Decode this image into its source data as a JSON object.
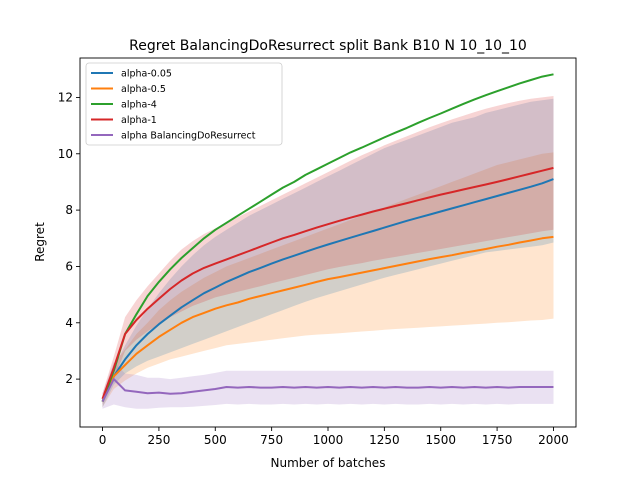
{
  "chart_data": {
    "type": "line",
    "title": "Regret BalancingDoResurrect split Bank B10 N 10_10_10",
    "xlabel": "Number of batches",
    "ylabel": "Regret",
    "xlim": [
      -100,
      2100
    ],
    "ylim": [
      0.3,
      13.4
    ],
    "xticks": [
      0,
      250,
      500,
      750,
      1000,
      1250,
      1500,
      1750,
      2000
    ],
    "yticks": [
      2,
      4,
      6,
      8,
      10,
      12
    ],
    "x": [
      0,
      50,
      100,
      150,
      200,
      250,
      300,
      350,
      400,
      450,
      500,
      550,
      600,
      650,
      700,
      750,
      800,
      850,
      900,
      950,
      1000,
      1050,
      1100,
      1150,
      1200,
      1250,
      1300,
      1350,
      1400,
      1450,
      1500,
      1550,
      1600,
      1650,
      1700,
      1750,
      1800,
      1850,
      1900,
      1950,
      2000
    ],
    "legend_position": "upper left",
    "series": [
      {
        "name": "alpha-0.05",
        "color": "#1f77b4",
        "values": [
          1.2,
          2.1,
          2.7,
          3.2,
          3.6,
          3.95,
          4.25,
          4.55,
          4.8,
          5.05,
          5.25,
          5.45,
          5.62,
          5.8,
          5.95,
          6.1,
          6.25,
          6.38,
          6.52,
          6.65,
          6.78,
          6.9,
          7.02,
          7.14,
          7.26,
          7.38,
          7.5,
          7.62,
          7.73,
          7.84,
          7.95,
          8.06,
          8.17,
          8.28,
          8.39,
          8.5,
          8.61,
          8.72,
          8.83,
          8.95,
          9.1
        ],
        "lower": [
          1.0,
          1.8,
          2.2,
          2.45,
          2.65,
          2.8,
          2.95,
          3.1,
          3.25,
          3.4,
          3.55,
          3.7,
          3.85,
          4.0,
          4.15,
          4.3,
          4.45,
          4.6,
          4.75,
          4.88,
          5.0,
          5.12,
          5.24,
          5.36,
          5.48,
          5.6,
          5.7,
          5.8,
          5.9,
          6.0,
          6.1,
          6.2,
          6.3,
          6.4,
          6.5,
          6.55,
          6.6,
          6.65,
          6.7,
          6.75,
          6.85
        ],
        "upper": [
          1.4,
          2.4,
          3.2,
          3.9,
          4.5,
          5.05,
          5.55,
          6.0,
          6.4,
          6.75,
          7.05,
          7.3,
          7.55,
          7.8,
          8.0,
          8.2,
          8.4,
          8.6,
          8.8,
          9.0,
          9.2,
          9.4,
          9.6,
          9.8,
          10.0,
          10.2,
          10.35,
          10.5,
          10.65,
          10.8,
          10.95,
          11.1,
          11.2,
          11.3,
          11.45,
          11.55,
          11.65,
          11.75,
          11.85,
          11.9,
          11.95
        ]
      },
      {
        "name": "alpha-0.5",
        "color": "#ff7f0e",
        "values": [
          1.2,
          2.1,
          2.5,
          2.9,
          3.2,
          3.5,
          3.75,
          4.0,
          4.2,
          4.35,
          4.5,
          4.62,
          4.72,
          4.85,
          4.95,
          5.05,
          5.15,
          5.25,
          5.35,
          5.45,
          5.55,
          5.62,
          5.7,
          5.78,
          5.86,
          5.94,
          6.02,
          6.1,
          6.18,
          6.26,
          6.33,
          6.4,
          6.48,
          6.55,
          6.62,
          6.7,
          6.77,
          6.85,
          6.92,
          7.0,
          7.05
        ],
        "lower": [
          1.0,
          1.65,
          1.95,
          2.2,
          2.4,
          2.55,
          2.7,
          2.8,
          2.9,
          3.0,
          3.1,
          3.2,
          3.25,
          3.3,
          3.35,
          3.4,
          3.45,
          3.5,
          3.55,
          3.58,
          3.6,
          3.63,
          3.66,
          3.69,
          3.72,
          3.75,
          3.78,
          3.8,
          3.82,
          3.85,
          3.87,
          3.9,
          3.92,
          3.95,
          3.97,
          4.0,
          4.02,
          4.05,
          4.08,
          4.1,
          4.15
        ],
        "upper": [
          1.4,
          2.55,
          3.05,
          3.6,
          4.0,
          4.45,
          4.8,
          5.1,
          5.35,
          5.6,
          5.8,
          6.0,
          6.15,
          6.3,
          6.45,
          6.6,
          6.75,
          6.9,
          7.05,
          7.2,
          7.35,
          7.5,
          7.65,
          7.8,
          7.95,
          8.1,
          8.25,
          8.4,
          8.55,
          8.7,
          8.85,
          9.0,
          9.15,
          9.3,
          9.45,
          9.6,
          9.7,
          9.8,
          9.9,
          10.0,
          10.05
        ]
      },
      {
        "name": "alpha-4",
        "color": "#2ca02c",
        "values": [
          1.2,
          2.3,
          3.6,
          4.3,
          4.95,
          5.45,
          5.9,
          6.3,
          6.65,
          7.0,
          7.3,
          7.55,
          7.8,
          8.05,
          8.3,
          8.55,
          8.8,
          9.0,
          9.25,
          9.45,
          9.65,
          9.85,
          10.05,
          10.22,
          10.4,
          10.58,
          10.75,
          10.92,
          11.1,
          11.27,
          11.43,
          11.6,
          11.77,
          11.93,
          12.08,
          12.22,
          12.36,
          12.5,
          12.62,
          12.74,
          12.82
        ],
        "lower": [
          1.2,
          2.3,
          3.6,
          4.3,
          4.95,
          5.45,
          5.9,
          6.3,
          6.65,
          7.0,
          7.3,
          7.55,
          7.8,
          8.05,
          8.3,
          8.55,
          8.8,
          9.0,
          9.25,
          9.45,
          9.65,
          9.85,
          10.05,
          10.22,
          10.4,
          10.58,
          10.75,
          10.92,
          11.1,
          11.27,
          11.43,
          11.6,
          11.77,
          11.93,
          12.08,
          12.22,
          12.36,
          12.5,
          12.62,
          12.74,
          12.82
        ],
        "upper": [
          1.2,
          2.3,
          3.6,
          4.3,
          4.95,
          5.45,
          5.9,
          6.3,
          6.65,
          7.0,
          7.3,
          7.55,
          7.8,
          8.05,
          8.3,
          8.55,
          8.8,
          9.0,
          9.25,
          9.45,
          9.65,
          9.85,
          10.05,
          10.22,
          10.4,
          10.58,
          10.75,
          10.92,
          11.1,
          11.27,
          11.43,
          11.6,
          11.77,
          11.93,
          12.08,
          12.22,
          12.36,
          12.5,
          12.62,
          12.74,
          12.82
        ]
      },
      {
        "name": "alpha-1",
        "color": "#d62728",
        "values": [
          1.3,
          2.4,
          3.6,
          4.1,
          4.5,
          4.85,
          5.2,
          5.5,
          5.75,
          5.95,
          6.1,
          6.25,
          6.4,
          6.55,
          6.7,
          6.85,
          7.0,
          7.12,
          7.25,
          7.38,
          7.5,
          7.62,
          7.73,
          7.84,
          7.95,
          8.05,
          8.15,
          8.25,
          8.35,
          8.45,
          8.55,
          8.64,
          8.73,
          8.82,
          8.91,
          9.0,
          9.1,
          9.2,
          9.3,
          9.4,
          9.5
        ],
        "lower": [
          1.1,
          2.0,
          3.0,
          3.4,
          3.7,
          3.95,
          4.2,
          4.4,
          4.6,
          4.75,
          4.9,
          5.0,
          5.1,
          5.2,
          5.3,
          5.4,
          5.5,
          5.6,
          5.7,
          5.8,
          5.9,
          5.98,
          6.05,
          6.12,
          6.2,
          6.27,
          6.34,
          6.41,
          6.48,
          6.55,
          6.62,
          6.69,
          6.76,
          6.83,
          6.9,
          6.97,
          7.04,
          7.11,
          7.18,
          7.25,
          7.3
        ],
        "upper": [
          1.5,
          2.8,
          4.2,
          4.8,
          5.3,
          5.75,
          6.2,
          6.6,
          6.9,
          7.15,
          7.35,
          7.55,
          7.75,
          7.95,
          8.15,
          8.35,
          8.55,
          8.75,
          8.95,
          9.15,
          9.35,
          9.55,
          9.75,
          9.95,
          10.12,
          10.3,
          10.46,
          10.62,
          10.78,
          10.94,
          11.08,
          11.22,
          11.35,
          11.48,
          11.6,
          11.7,
          11.8,
          11.88,
          11.95,
          12.0,
          12.05
        ]
      },
      {
        "name": "alpha BalancingDoResurrect",
        "color": "#9467bd",
        "values": [
          1.2,
          2.0,
          1.6,
          1.55,
          1.5,
          1.52,
          1.48,
          1.5,
          1.55,
          1.6,
          1.65,
          1.72,
          1.7,
          1.72,
          1.7,
          1.7,
          1.72,
          1.7,
          1.72,
          1.7,
          1.72,
          1.7,
          1.72,
          1.7,
          1.72,
          1.7,
          1.72,
          1.7,
          1.7,
          1.72,
          1.7,
          1.72,
          1.7,
          1.72,
          1.7,
          1.72,
          1.7,
          1.72,
          1.72,
          1.72,
          1.72
        ],
        "lower": [
          0.95,
          1.1,
          1.0,
          0.95,
          0.95,
          0.98,
          1.0,
          1.0,
          1.02,
          1.05,
          1.08,
          1.12,
          1.1,
          1.12,
          1.1,
          1.1,
          1.12,
          1.1,
          1.12,
          1.1,
          1.12,
          1.1,
          1.12,
          1.1,
          1.12,
          1.1,
          1.12,
          1.1,
          1.1,
          1.12,
          1.1,
          1.12,
          1.1,
          1.12,
          1.1,
          1.12,
          1.1,
          1.12,
          1.12,
          1.12,
          1.12
        ],
        "upper": [
          1.5,
          2.6,
          2.2,
          2.15,
          2.05,
          2.05,
          2.0,
          2.05,
          2.1,
          2.15,
          2.22,
          2.3,
          2.3,
          2.3,
          2.3,
          2.3,
          2.3,
          2.3,
          2.3,
          2.3,
          2.3,
          2.3,
          2.3,
          2.3,
          2.3,
          2.3,
          2.3,
          2.3,
          2.3,
          2.3,
          2.3,
          2.3,
          2.3,
          2.3,
          2.3,
          2.3,
          2.3,
          2.3,
          2.3,
          2.3,
          2.3
        ]
      }
    ]
  }
}
